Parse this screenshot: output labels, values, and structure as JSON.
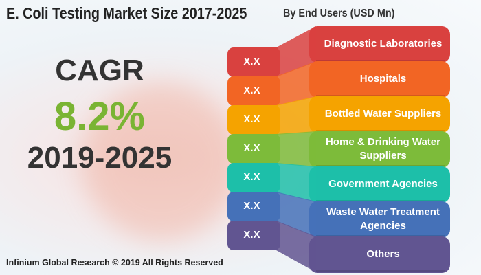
{
  "header": {
    "title": "E. Coli Testing Market Size 2017-2025",
    "subtitle": "By End Users (USD Mn)"
  },
  "cagr": {
    "label": "CAGR",
    "value": "8.2%",
    "period": "2019-2025",
    "value_color": "#7ab433"
  },
  "segments": [
    {
      "label": "Diagnostic Laboratories",
      "value": "X.X",
      "color": "#d9413f"
    },
    {
      "label": "Hospitals",
      "value": "X.X",
      "color": "#f26524"
    },
    {
      "label": "Bottled Water Suppliers",
      "value": "X.X",
      "color": "#f5a300"
    },
    {
      "label": "Home & Drinking Water Suppliers",
      "value": "X.X",
      "color": "#7dbb3a"
    },
    {
      "label": "Government Agencies",
      "value": "X.X",
      "color": "#1dbfa9"
    },
    {
      "label": "Waste Water Treatment Agencies",
      "value": "X.X",
      "color": "#4571b8"
    },
    {
      "label": "Others",
      "value": "X.X",
      "color": "#615591"
    }
  ],
  "footer": {
    "copyright": "Infinium Global Research © 2019 All Rights Reserved"
  }
}
